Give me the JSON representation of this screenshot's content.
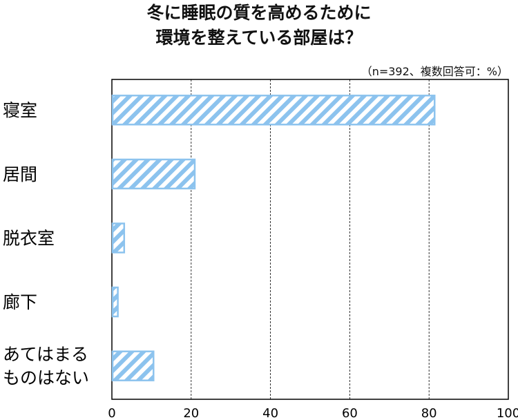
{
  "chart_data": {
    "type": "bar",
    "orientation": "horizontal",
    "title_lines": [
      "冬に睡眠の質を高めるために",
      "環境を整えている部屋は？"
    ],
    "note": "（n=392、複数回答可：%）",
    "categories": [
      "寝室",
      "居間",
      "脱衣室",
      "廊下",
      "あてはまる\nものはない"
    ],
    "values": [
      81.4,
      20.9,
      3.1,
      1.5,
      10.5
    ],
    "xlim": [
      0,
      100
    ],
    "xticks": [
      "0",
      "20",
      "40",
      "60",
      "80",
      "100"
    ],
    "grid": true,
    "bar_style": "diagonal-hatch",
    "bar_color": "#8cc3ee"
  }
}
